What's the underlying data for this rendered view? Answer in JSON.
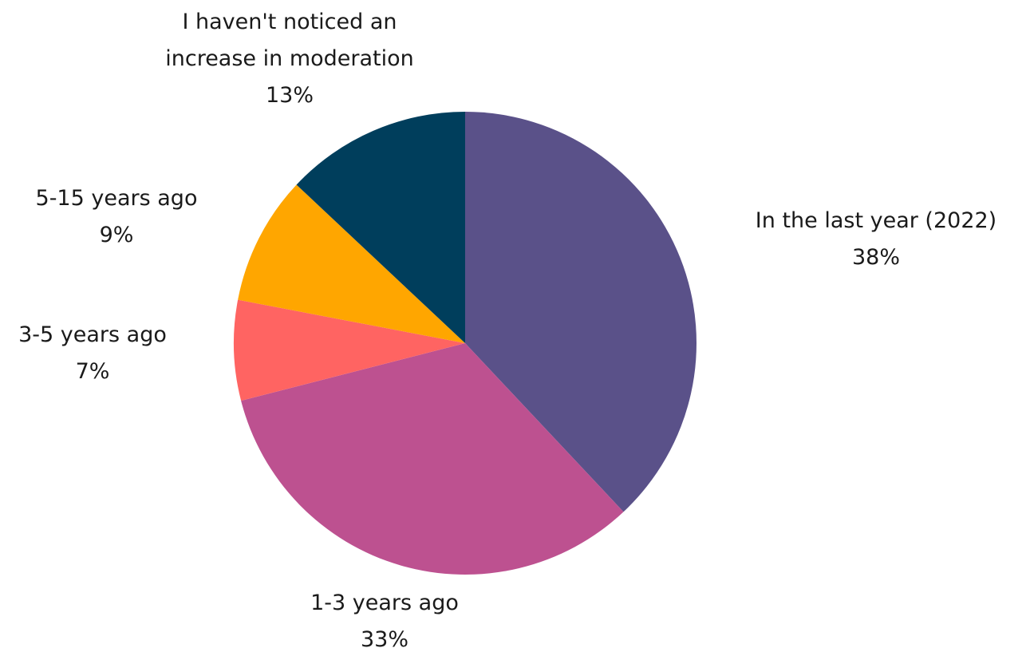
{
  "chart_data": {
    "type": "pie",
    "title": "",
    "slices": [
      {
        "label_lines": [
          "In the last year (2022)"
        ],
        "percent_label": "38%",
        "value": 38,
        "color": "#5a5189"
      },
      {
        "label_lines": [
          "1-3 years ago"
        ],
        "percent_label": "33%",
        "value": 33,
        "color": "#bd5190"
      },
      {
        "label_lines": [
          "3-5 years ago"
        ],
        "percent_label": "7%",
        "value": 7,
        "color": "#ff6462"
      },
      {
        "label_lines": [
          "5-15 years ago"
        ],
        "percent_label": "9%",
        "value": 9,
        "color": "#ffa600"
      },
      {
        "label_lines": [
          "I haven't noticed an",
          "increase in moderation"
        ],
        "percent_label": "13%",
        "value": 13,
        "color": "#003e5c"
      }
    ]
  }
}
